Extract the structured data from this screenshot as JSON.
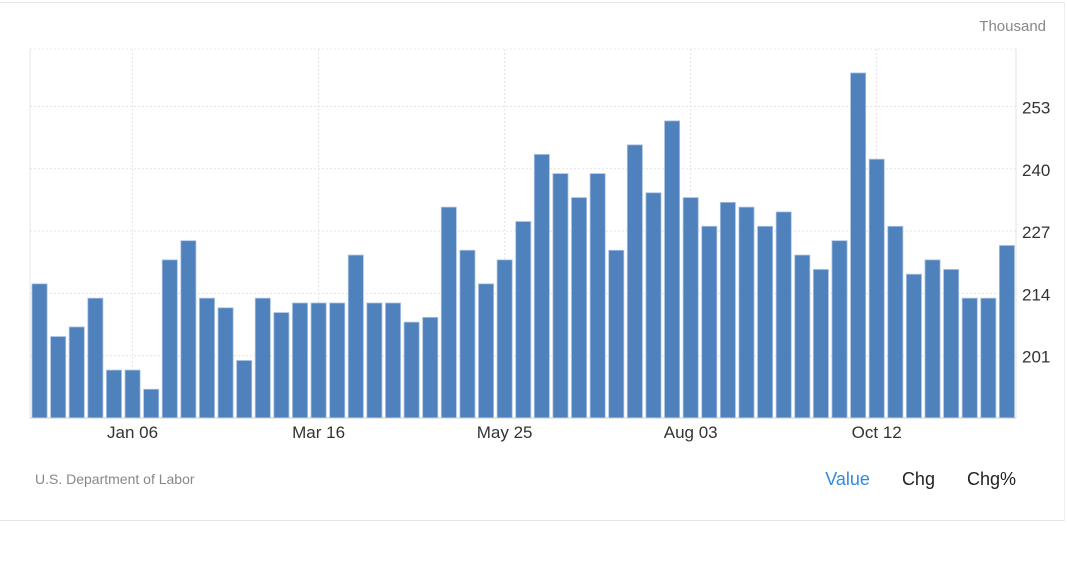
{
  "unit_label": "Thousand",
  "source": "U.S. Department of Labor",
  "tabs": [
    {
      "label": "Value",
      "active": true
    },
    {
      "label": "Chg",
      "active": false
    },
    {
      "label": "Chg%",
      "active": false
    }
  ],
  "colors": {
    "bar": "#4f81bd",
    "active_tab": "#2f8ce0"
  },
  "chart_data": {
    "type": "bar",
    "title": "",
    "xlabel": "",
    "ylabel": "",
    "ylim": [
      188,
      265
    ],
    "y_ticks": [
      201,
      214,
      227,
      240,
      253
    ],
    "y_axis_position": "right",
    "grid": true,
    "x_tick_labels": [
      {
        "index": 5,
        "label": "Jan 06"
      },
      {
        "index": 15,
        "label": "Mar 16"
      },
      {
        "index": 25,
        "label": "May 25"
      },
      {
        "index": 35,
        "label": "Aug 03"
      },
      {
        "index": 45,
        "label": "Oct 12"
      }
    ],
    "values": [
      216,
      205,
      207,
      213,
      198,
      198,
      194,
      221,
      225,
      213,
      211,
      200,
      213,
      210,
      212,
      212,
      212,
      222,
      212,
      212,
      208,
      209,
      232,
      223,
      216,
      221,
      229,
      243,
      239,
      234,
      239,
      223,
      245,
      235,
      250,
      234,
      228,
      233,
      232,
      228,
      231,
      222,
      219,
      225,
      260,
      242,
      228,
      218,
      221,
      219,
      213,
      213,
      224
    ]
  }
}
